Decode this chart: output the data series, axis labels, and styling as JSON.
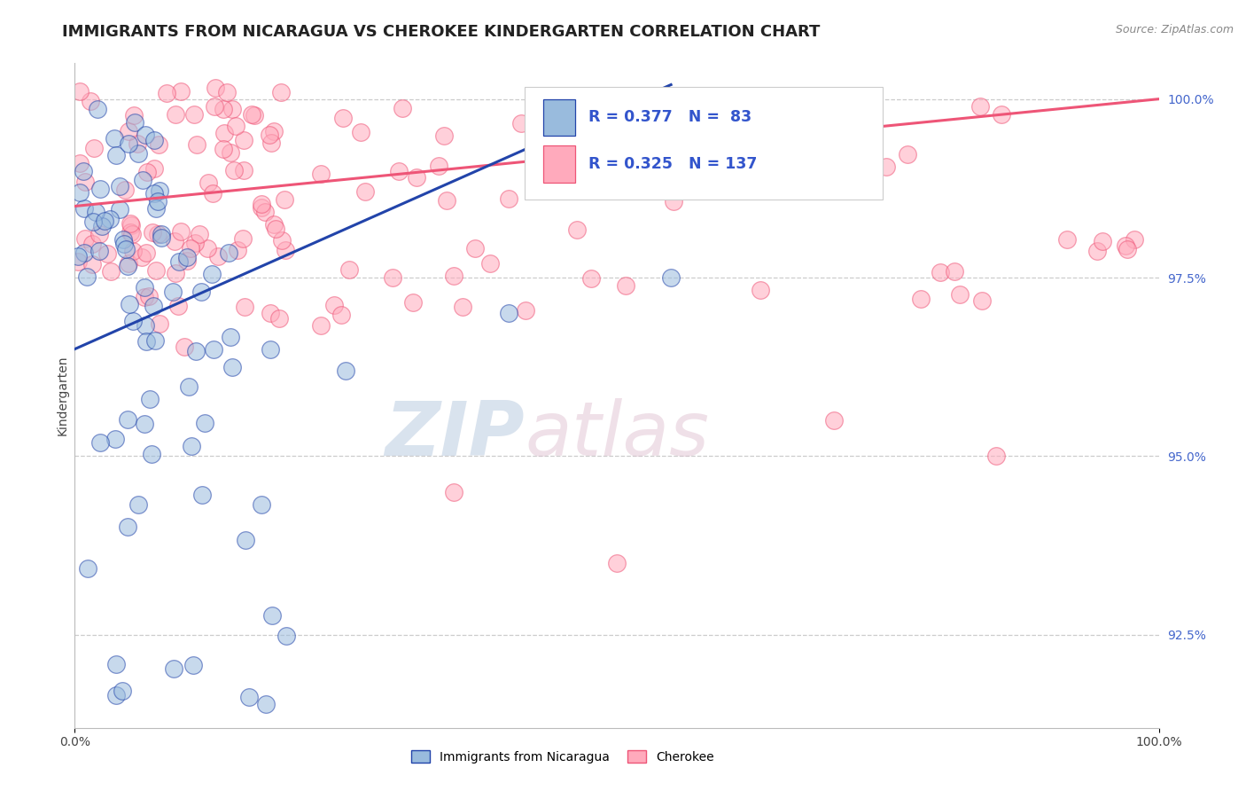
{
  "title": "IMMIGRANTS FROM NICARAGUA VS CHEROKEE KINDERGARTEN CORRELATION CHART",
  "source_text": "Source: ZipAtlas.com",
  "ylabel": "Kindergarten",
  "color_blue": "#99BBDD",
  "color_pink": "#FFAABC",
  "color_blue_line": "#2244AA",
  "color_pink_line": "#EE5577",
  "watermark_zip": "ZIP",
  "watermark_atlas": "atlas",
  "watermark_color_zip": "#BBCCDD",
  "watermark_color_atlas": "#CCBBCC",
  "background_color": "#FFFFFF",
  "grid_color": "#CCCCCC",
  "title_fontsize": 13,
  "axis_label_fontsize": 10,
  "tick_fontsize": 10,
  "xlim": [
    0,
    100
  ],
  "ylim": [
    91.2,
    100.5
  ],
  "yticks": [
    92.5,
    95.0,
    97.5,
    100.0
  ],
  "xticks": [
    0,
    100
  ],
  "legend_r_blue": "R = 0.377",
  "legend_n_blue": "N =  83",
  "legend_r_pink": "R = 0.325",
  "legend_n_pink": "N = 137"
}
